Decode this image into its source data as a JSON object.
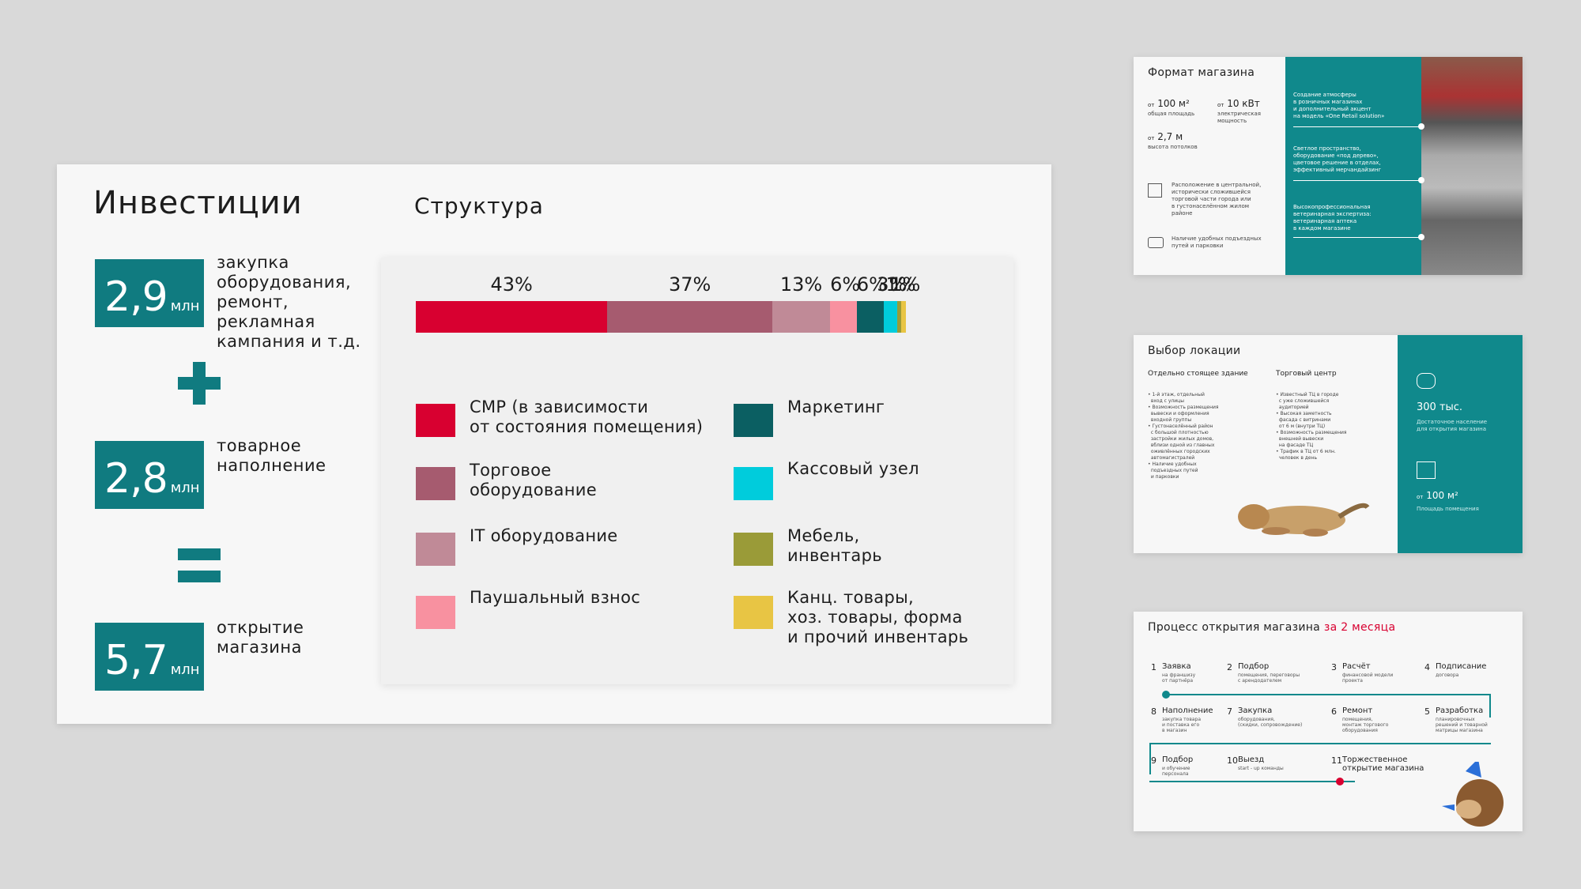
{
  "main": {
    "title": "Инвестиции",
    "structure_title": "Структура",
    "investments": [
      {
        "value": "2,9",
        "unit": "млн",
        "desc": "закупка\nоборудования,\nремонт,\nрекламная\nкампания и т.д."
      },
      {
        "value": "2,8",
        "unit": "млн",
        "desc": "товарное\nнаполнение"
      },
      {
        "value": "5,7",
        "unit": "млн",
        "desc": "открытие\nмагазина"
      }
    ]
  },
  "chart_data": {
    "type": "bar",
    "stacked": true,
    "categories": [
      "СМР (в зависимости от состояния помещения)",
      "Торговое оборудование",
      "IT оборудование",
      "Паушальный взнос",
      "Маркетинг",
      "Кассовый узел",
      "Мебель, инвентарь",
      "Канц. товары, хоз. товары, форма и прочий инвентарь"
    ],
    "values": [
      43,
      37,
      13,
      6,
      6,
      3,
      1,
      1
    ],
    "labels": [
      "43%",
      "37%",
      "13%",
      "6%",
      "6%",
      "3%",
      "1%",
      "1%"
    ],
    "colors": [
      "#d80030",
      "#a65b6f",
      "#c08a97",
      "#f891a0",
      "#0b5f62",
      "#00ccdc",
      "#9a9b38",
      "#e8c544"
    ]
  },
  "legend": [
    {
      "label": "СМР (в зависимости\nот состояния помещения)"
    },
    {
      "label": "Торговое\nоборудование"
    },
    {
      "label": "IT оборудование"
    },
    {
      "label": "Паушальный взнос"
    },
    {
      "label": "Маркетинг"
    },
    {
      "label": "Кассовый узел"
    },
    {
      "label": "Мебель,\nинвентарь"
    },
    {
      "label": "Канц. товары,\nхоз. товары, форма\nи прочий инвентарь"
    }
  ],
  "format": {
    "title": "Формат магазина",
    "area_prefix": "от",
    "area": "100 м²",
    "area_label": "общая площадь",
    "power_prefix": "от",
    "power": "10 кВт",
    "power_label": "электрическая\nмощность",
    "height_prefix": "от",
    "height": "2,7 м",
    "height_label": "высота потолков",
    "location_note": "Расположение в центральной,\nисторически сложившейся\nторговой части города или\nв густонаселённом жилом\nрайоне",
    "parking_note": "Наличие удобных подъездных\nпутей и парковки",
    "teal_notes": [
      "Создание атмосферы\nв розничных магазинах\nи дополнительный акцент\nна модель «One Retail solution»",
      "Светлое пространство,\nоборудование «под дерево»,\nцветовое решение в отделах,\nэффективный мерчандайзинг",
      "Высокопрофессиональная\nветеринарная экспертиза:\nветеринарная аптека\nв каждом магазине"
    ]
  },
  "location": {
    "title": "Выбор локации",
    "col1_title": "Отдельно стоящее здание",
    "col1_items": "• 1-й этаж, отдельный\n  вход с улицы\n• Возможность размещения\n  вывески и оформления\n  входной группы\n• Густонаселённый район\n  с большой плотностью\n  застройки жилых домов,\n  вблизи одной из главных\n  оживлённых городских\n  автомагистралей\n• Наличие удобных\n  подъездных путей\n  и парковки",
    "col2_title": "Торговый центр",
    "col2_items": "• Известный ТЦ в городе\n  с уже сложившейся\n  аудиторией\n• Высокая заметность\n  фасада с витринами\n  от 6 м (внутри ТЦ)\n• Возможность размещения\n  внешней вывески\n  на фасаде ТЦ\n• Трафик в ТЦ от 6 млн.\n  человек в день",
    "pop": "300 тыс.",
    "pop_label": "Достаточное население\nдля открытия магазина",
    "area_prefix": "от",
    "area": "100 м²",
    "area_label": "Площадь помещения"
  },
  "process": {
    "title": "Процесс открытия магазина",
    "title_accent": "за 2 месяца",
    "steps": [
      {
        "n": "1",
        "label": "Заявка",
        "sub": "на франшизу\nот партнёра"
      },
      {
        "n": "2",
        "label": "Подбор",
        "sub": "помещения, переговоры\nс арендодателем"
      },
      {
        "n": "3",
        "label": "Расчёт",
        "sub": "финансовой модели\nпроекта"
      },
      {
        "n": "4",
        "label": "Подписание",
        "sub": "договора"
      },
      {
        "n": "5",
        "label": "Разработка",
        "sub": "планировочных\nрешений и товарной\nматрицы магазина"
      },
      {
        "n": "6",
        "label": "Ремонт",
        "sub": "помещения,\nмонтаж торгового\nоборудования"
      },
      {
        "n": "7",
        "label": "Закупка",
        "sub": "оборудования,\n(скидки, сопровождение)"
      },
      {
        "n": "8",
        "label": "Наполнение",
        "sub": "закупка товара\nи поставка его\nв магазин"
      },
      {
        "n": "9",
        "label": "Подбор",
        "sub": "и обучение\nперсонала"
      },
      {
        "n": "10",
        "label": "Выезд",
        "sub": "start - up команды"
      },
      {
        "n": "11",
        "label": "Торжественное\nоткрытие магазина",
        "sub": ""
      }
    ]
  }
}
